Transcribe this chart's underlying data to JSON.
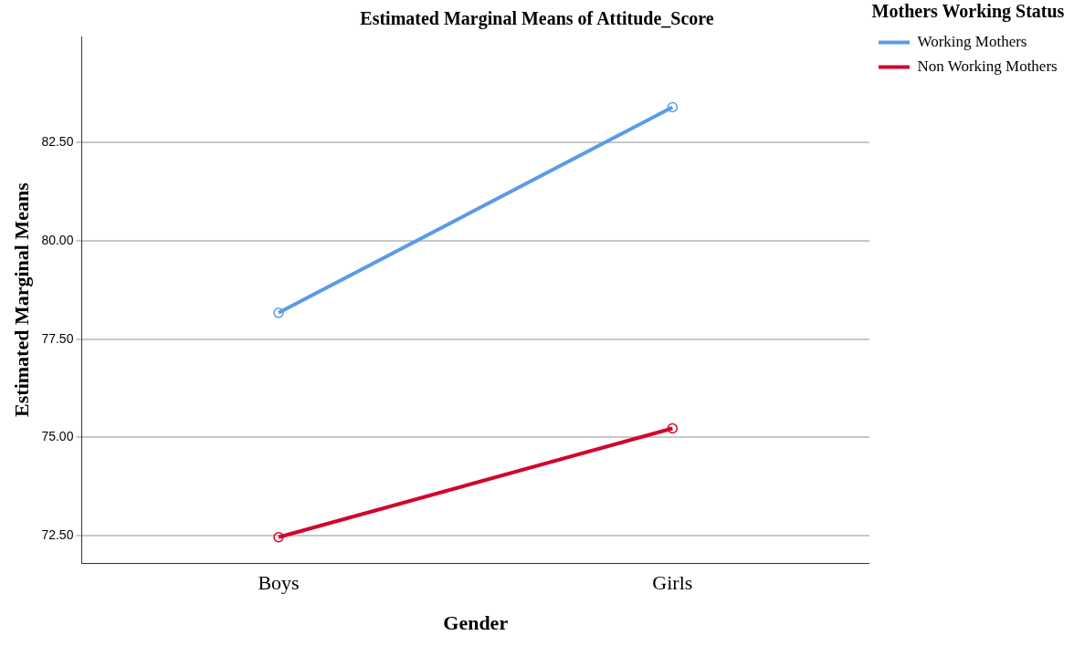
{
  "chart_data": {
    "type": "line",
    "title": "Estimated Marginal Means of Attitude_Score",
    "xlabel": "Gender",
    "ylabel": "Estimated Marginal Means",
    "legend_title": "Mothers Working Status",
    "categories": [
      "Boys",
      "Girls"
    ],
    "series": [
      {
        "name": "Working Mothers",
        "color": "#5b9be6",
        "values": [
          78.17,
          83.4
        ]
      },
      {
        "name": "Non Working Mothers",
        "color": "#d2042d",
        "values": [
          72.46,
          75.23
        ]
      }
    ],
    "ylim": [
      71.8,
      85.2
    ],
    "yticks": [
      {
        "value": 72.5,
        "label": "72.50"
      },
      {
        "value": 75,
        "label": "75.00"
      },
      {
        "value": 77.5,
        "label": "77.50"
      },
      {
        "value": 80,
        "label": "80.00"
      },
      {
        "value": 82.5,
        "label": "82.50"
      }
    ],
    "grid": "y",
    "legend": "right",
    "marker": "circle",
    "line_style": "solid"
  }
}
